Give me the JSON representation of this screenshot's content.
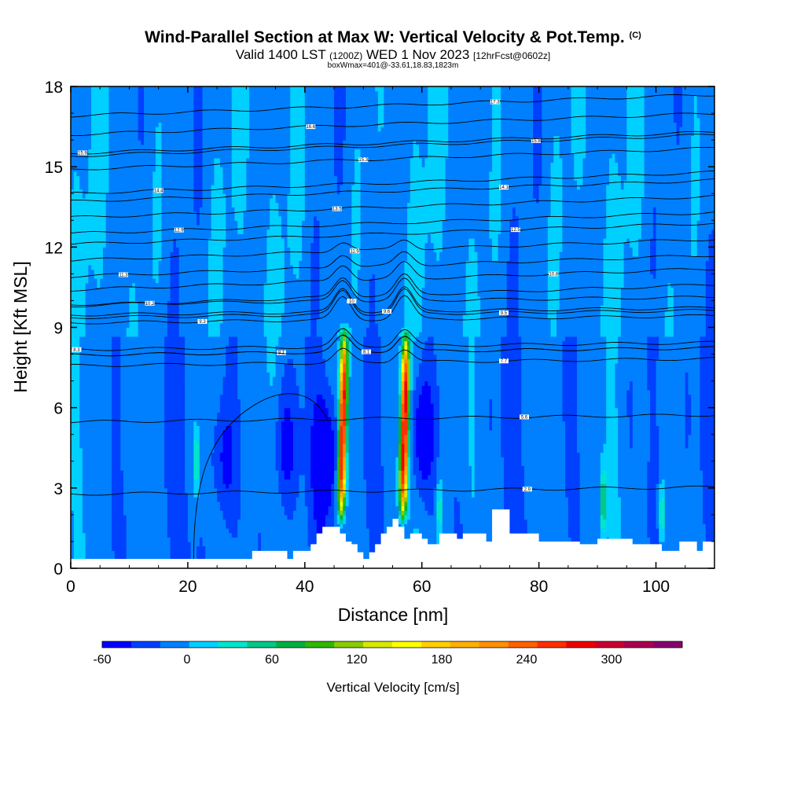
{
  "title": {
    "main": "Wind-Parallel Section at Max W: Vertical Velocity & Pot.Temp.",
    "copyright": "(C)",
    "valid_prefix": "Valid 1400 LST",
    "valid_utc": "(1200Z)",
    "valid_date": "WED 1 Nov 2023",
    "forecast": "[12hrFcst@0602z]",
    "box_info": "boxWmax=401@-33.61,18.83,1823m"
  },
  "chart_data": {
    "type": "heatmap",
    "xlabel": "Distance [nm]",
    "ylabel": "Height [Kft MSL]",
    "xlim": [
      0,
      110
    ],
    "ylim": [
      0,
      18
    ],
    "xticks": [
      0,
      20,
      40,
      60,
      80,
      100
    ],
    "yticks": [
      0,
      3,
      6,
      9,
      12,
      15,
      18
    ],
    "colorbar": {
      "label": "Vertical Velocity [cm/s]",
      "tick_values": [
        -60,
        0,
        60,
        120,
        180,
        240,
        300
      ],
      "tick_labels": [
        "-60",
        "0",
        "60",
        "120",
        "180",
        "240",
        "300"
      ],
      "range": [
        -60,
        350
      ],
      "colors": [
        "#0000ff",
        "#0040ff",
        "#0080ff",
        "#00d0ff",
        "#00e6cc",
        "#00c888",
        "#00b040",
        "#30b800",
        "#88cc00",
        "#d8e800",
        "#ffff00",
        "#ffd000",
        "#ffb000",
        "#ff9000",
        "#ff6000",
        "#ff3000",
        "#ee0000",
        "#cc0030",
        "#aa0050",
        "#880070"
      ]
    },
    "background_w": -5,
    "updrafts": [
      {
        "x": 46.5,
        "y_bottom": 1.5,
        "y_top": 9.2,
        "peak_w": 300
      },
      {
        "x": 57.0,
        "y_bottom": 1.5,
        "y_top": 9.0,
        "peak_w": 300
      }
    ],
    "downdrafts": [
      {
        "x": 43.5,
        "y_center": 4.2,
        "min_w": -60
      },
      {
        "x": 60.0,
        "y_center": 5.0,
        "min_w": -55
      },
      {
        "x": 36.5,
        "y_center": 4.5,
        "min_w": -40
      },
      {
        "x": 26.0,
        "y_center": 4.0,
        "min_w": -35
      }
    ],
    "weak_updrafts": [
      {
        "x": 21.5,
        "y_center": 4.0,
        "w": 60
      },
      {
        "x": 91.0,
        "y_center": 2.5,
        "w": 80
      },
      {
        "x": 101.0,
        "y_center": 2.0,
        "w": 60
      },
      {
        "x": 63.0,
        "y_center": 2.2,
        "w": 50
      }
    ],
    "terrain_kft": [
      [
        0,
        0.35
      ],
      [
        30,
        0.35
      ],
      [
        31,
        0.65
      ],
      [
        36,
        0.65
      ],
      [
        37,
        0.35
      ],
      [
        38,
        0.65
      ],
      [
        40,
        0.65
      ],
      [
        41,
        0.9
      ],
      [
        42,
        1.3
      ],
      [
        43,
        1.55
      ],
      [
        45,
        1.55
      ],
      [
        46,
        1.3
      ],
      [
        47,
        1.0
      ],
      [
        48,
        0.9
      ],
      [
        49,
        0.6
      ],
      [
        50,
        0.35
      ],
      [
        51,
        0.6
      ],
      [
        52,
        0.9
      ],
      [
        53,
        1.3
      ],
      [
        54,
        1.55
      ],
      [
        55,
        1.85
      ],
      [
        56,
        1.55
      ],
      [
        57,
        1.1
      ],
      [
        58,
        1.3
      ],
      [
        59,
        1.3
      ],
      [
        60,
        1.1
      ],
      [
        61,
        0.9
      ],
      [
        62,
        0.9
      ],
      [
        63,
        1.3
      ],
      [
        65,
        1.3
      ],
      [
        66,
        1.1
      ],
      [
        67,
        1.3
      ],
      [
        70,
        1.3
      ],
      [
        71,
        1.0
      ],
      [
        72,
        2.2
      ],
      [
        74,
        2.2
      ],
      [
        75,
        1.3
      ],
      [
        79,
        1.3
      ],
      [
        80,
        1.0
      ],
      [
        86,
        1.0
      ],
      [
        87,
        0.9
      ],
      [
        89,
        0.9
      ],
      [
        90,
        1.1
      ],
      [
        95,
        1.1
      ],
      [
        96,
        0.9
      ],
      [
        100,
        0.9
      ],
      [
        101,
        0.65
      ],
      [
        103,
        0.65
      ],
      [
        104,
        1.0
      ],
      [
        106,
        1.0
      ],
      [
        107,
        0.65
      ],
      [
        108,
        1.0
      ],
      [
        110,
        1.0
      ]
    ],
    "theta_contours": [
      {
        "label": "8.3",
        "y": 8.3,
        "label_x": 1.0
      },
      {
        "label": "9.3",
        "y": 9.3,
        "label_x": 22.5
      },
      {
        "label": "8.1",
        "y": 8.1,
        "label_x": 36.0
      },
      {
        "label": "10.2",
        "y": 10.2,
        "label_x": 13.5
      },
      {
        "label": "11.3",
        "y": 11.3,
        "label_x": 9.0
      },
      {
        "label": "12.9",
        "y": 12.9,
        "label_x": 18.5
      },
      {
        "label": "14.4",
        "y": 14.4,
        "label_x": 15.0
      },
      {
        "label": "15.9",
        "y": 15.9,
        "label_x": 2.0
      },
      {
        "label": "16.6",
        "y": 16.6,
        "label_x": 41.0
      },
      {
        "label": "15.3",
        "y": 15.3,
        "label_x": 50.0
      },
      {
        "label": "13.5",
        "y": 13.5,
        "label_x": 45.5
      },
      {
        "label": "11.9",
        "y": 11.9,
        "label_x": 48.5
      },
      {
        "label": "10",
        "y": 10.0,
        "label_x": 48.0
      },
      {
        "label": "9.6",
        "y": 9.6,
        "label_x": 54.0
      },
      {
        "label": "8.1",
        "y": 8.1,
        "label_x": 50.5
      },
      {
        "label": "17.3",
        "y": 17.3,
        "label_x": 72.5
      },
      {
        "label": "15.8",
        "y": 15.8,
        "label_x": 79.5
      },
      {
        "label": "14.1",
        "y": 14.1,
        "label_x": 74.0
      },
      {
        "label": "12.5",
        "y": 12.5,
        "label_x": 76.0
      },
      {
        "label": "10.8",
        "y": 10.8,
        "label_x": 82.5
      },
      {
        "label": "9.5",
        "y": 9.5,
        "label_x": 74.0
      },
      {
        "label": "7.7",
        "y": 7.7,
        "label_x": 74.0
      },
      {
        "label": "5.6",
        "y": 5.6,
        "label_x": 77.5
      },
      {
        "label": "2.9",
        "y": 2.9,
        "label_x": 78.0
      }
    ]
  }
}
